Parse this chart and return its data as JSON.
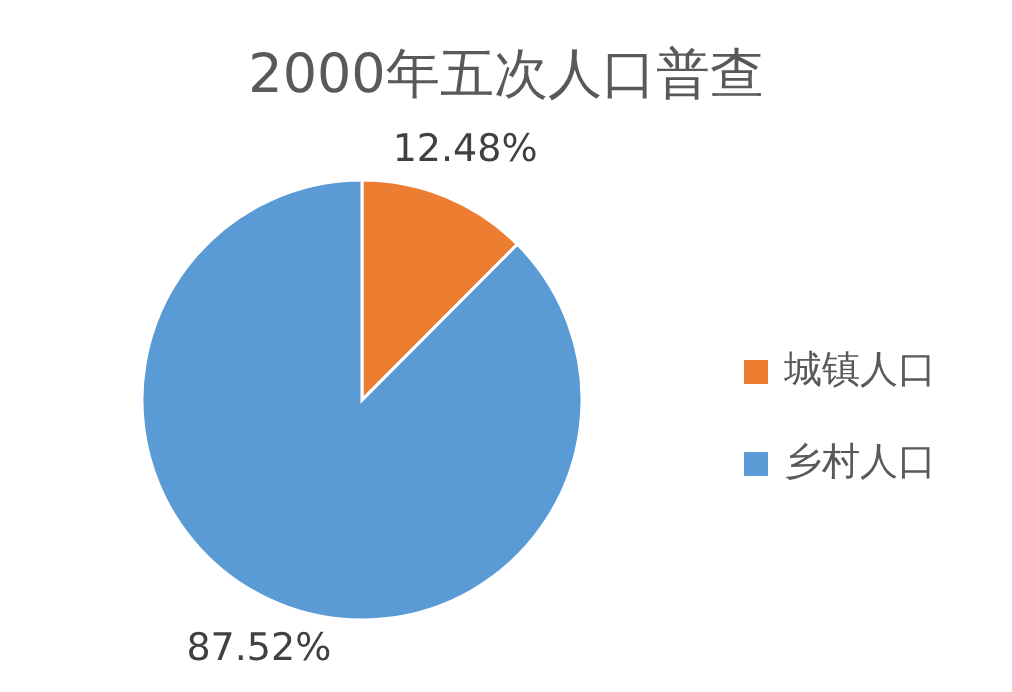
{
  "chart_data": {
    "type": "pie",
    "title": "2000年五次人口普查",
    "categories": [
      "城镇人口",
      "乡村人口"
    ],
    "values": [
      12.48,
      87.52
    ],
    "value_labels": [
      "12.48%",
      "87.52%"
    ],
    "colors": [
      "#ed7d31",
      "#5b9bd5"
    ],
    "legend": "right"
  }
}
